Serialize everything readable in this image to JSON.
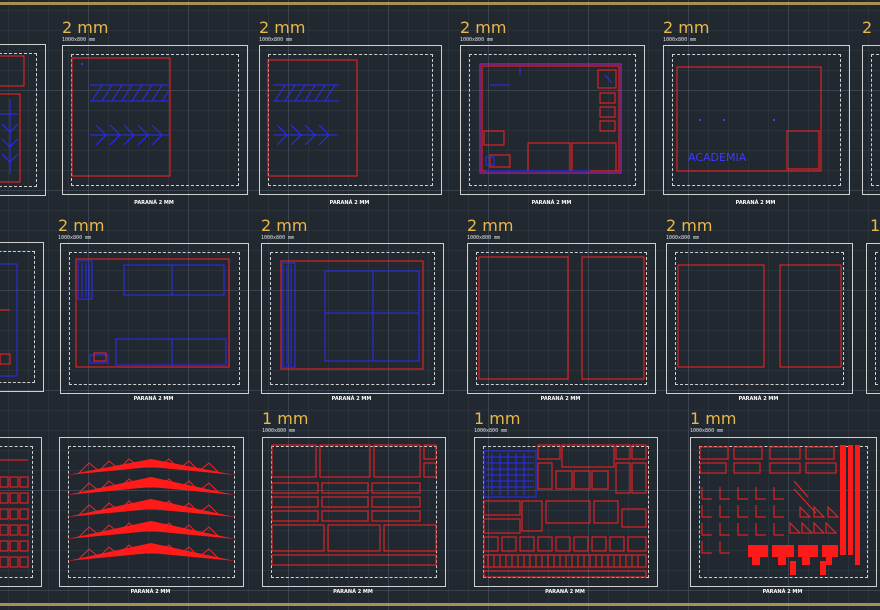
{
  "rows": [
    {
      "sheets": [
        {
          "thickness": "",
          "dimension": "",
          "caption": ""
        },
        {
          "thickness": "2 mm",
          "dimension": "1000x800 mm",
          "caption": "PARANÁ 2 MM"
        },
        {
          "thickness": "2 mm",
          "dimension": "1000x800 mm",
          "caption": "PARANÁ 2 MM"
        },
        {
          "thickness": "2 mm",
          "dimension": "1000x800 mm",
          "caption": "PARANÁ 2 MM"
        },
        {
          "thickness": "2 mm",
          "dimension": "1000x800 mm",
          "caption": "PARANÁ 2 MM",
          "label": "ACADEMIA"
        },
        {
          "thickness": "2",
          "dimension": "",
          "caption": ""
        }
      ]
    },
    {
      "sheets": [
        {
          "thickness": "",
          "dimension": "",
          "caption": ""
        },
        {
          "thickness": "2 mm",
          "dimension": "1000x800 mm",
          "caption": "PARANÁ 2 MM"
        },
        {
          "thickness": "2 mm",
          "dimension": "1000x800 mm",
          "caption": "PARANÁ 2 MM"
        },
        {
          "thickness": "2 mm",
          "dimension": "1000x800 mm",
          "caption": "PARANÁ 2 MM"
        },
        {
          "thickness": "2 mm",
          "dimension": "1000x800 mm",
          "caption": "PARANÁ 2 MM"
        },
        {
          "thickness": "1",
          "dimension": "",
          "caption": ""
        }
      ]
    },
    {
      "sheets": [
        {
          "thickness": "",
          "dimension": "",
          "caption": ""
        },
        {
          "thickness": "",
          "dimension": "",
          "caption": "PARANÁ 2 MM"
        },
        {
          "thickness": "1 mm",
          "dimension": "1000x800 mm",
          "caption": "PARANÁ 2 MM"
        },
        {
          "thickness": "1 mm",
          "dimension": "1000x800 mm",
          "caption": "PARANÁ 2 MM"
        },
        {
          "thickness": "1 mm",
          "dimension": "1000x800 mm",
          "caption": "PARANÁ 2 MM"
        }
      ]
    }
  ],
  "colors": {
    "background": "#212830",
    "frame": "#d0d0d0",
    "thickness_text": "#e9b84a",
    "cut_red": "#ff2020",
    "engrave_blue": "#2a2cff",
    "border_gold": "#a88f52"
  }
}
